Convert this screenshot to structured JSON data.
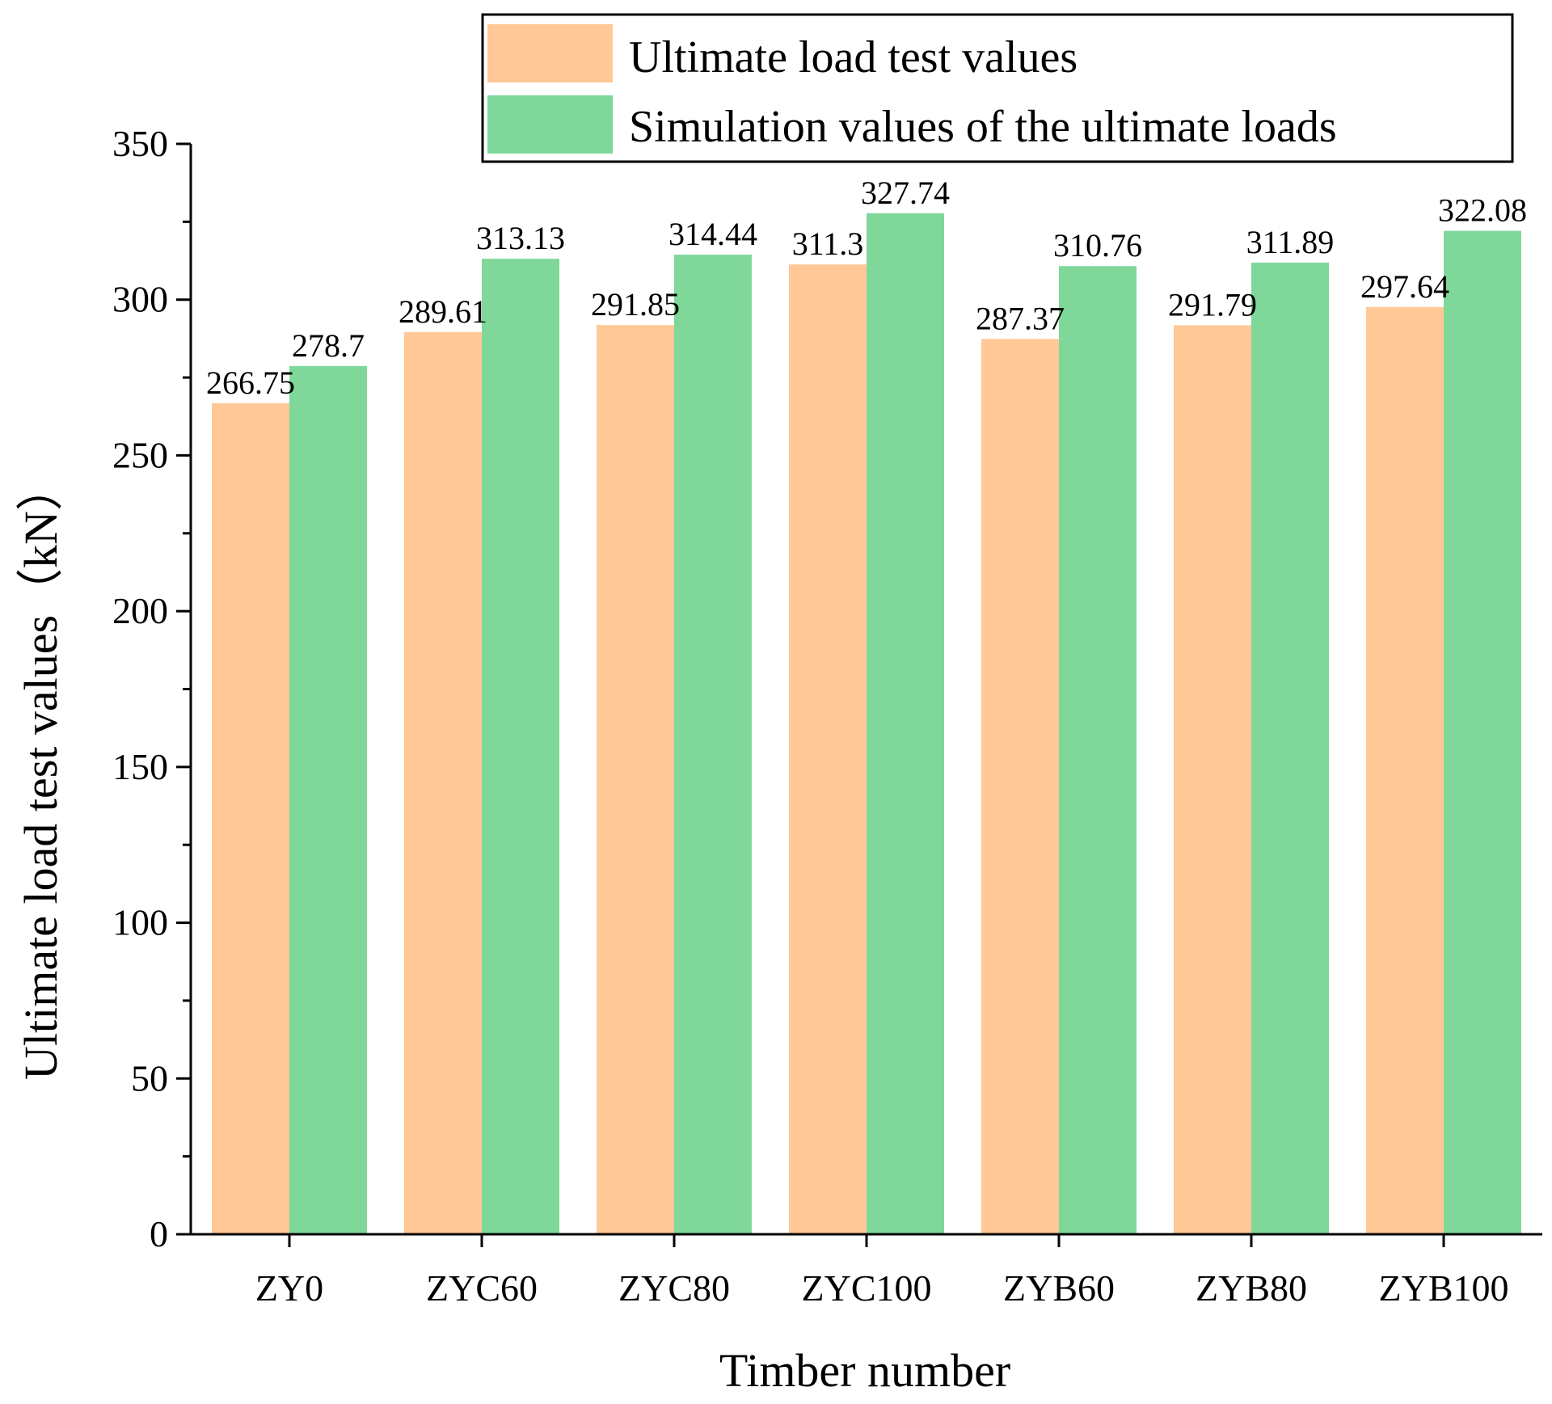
{
  "chart_data": {
    "type": "bar",
    "title": "",
    "xlabel": "Timber number",
    "ylabel": "Ultimate load test values（kN）",
    "ylim": [
      0,
      350
    ],
    "yticks": [
      0,
      50,
      100,
      150,
      200,
      250,
      300,
      350
    ],
    "grid": false,
    "legend_position": "top-right",
    "categories": [
      "ZY0",
      "ZYC60",
      "ZYC80",
      "ZYC100",
      "ZYB60",
      "ZYB80",
      "ZYB100"
    ],
    "series": [
      {
        "name": "Ultimate load test values",
        "color": "#FFC896",
        "values": [
          266.75,
          289.61,
          291.85,
          311.3,
          287.37,
          291.79,
          297.64
        ],
        "labels": [
          "266.75",
          "289.61",
          "291.85",
          "311.3",
          "287.37",
          "291.79",
          "297.64"
        ]
      },
      {
        "name": "Simulation values of the ultimate loads",
        "color": "#7FD89A",
        "values": [
          278.7,
          313.13,
          314.44,
          327.74,
          310.76,
          311.89,
          322.08
        ],
        "labels": [
          "278.7",
          "313.13",
          "314.44",
          "327.74",
          "310.76",
          "311.89",
          "322.08"
        ]
      }
    ]
  }
}
